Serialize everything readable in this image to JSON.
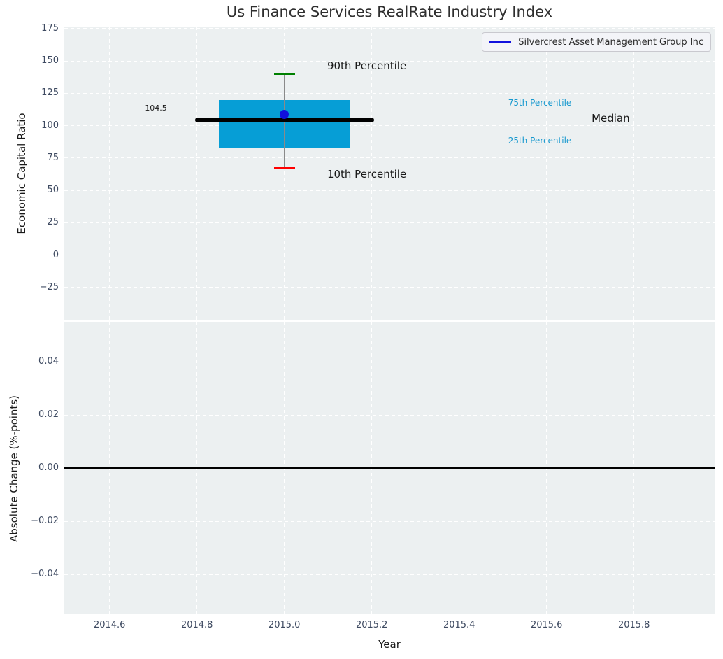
{
  "figure": {
    "title": "Us Finance Services RealRate Industry Index",
    "legend": {
      "label": "Silvercrest Asset Management Group Inc",
      "line_color": "#1111dd"
    }
  },
  "chart_data": {
    "type": "boxplot",
    "title": "Us Finance Services RealRate Industry Index",
    "xlabel": "Year",
    "xlim": [
      2014.4965,
      2015.9845
    ],
    "x_ticks": [
      2014.6,
      2014.8,
      2015.0,
      2015.2,
      2015.4,
      2015.6,
      2015.8
    ],
    "x_tick_labels": [
      "2014.6",
      "2014.8",
      "2015.0",
      "2015.2",
      "2015.4",
      "2015.6",
      "2015.8"
    ],
    "grid": true,
    "legend_position": "upper right",
    "subplots": [
      {
        "ylabel": "Economic Capital Ratio",
        "ylim": [
          -50,
          176.6
        ],
        "y_ticks": [
          175,
          150,
          125,
          100,
          75,
          50,
          25,
          0,
          -25
        ],
        "y_tick_labels": [
          "175",
          "150",
          "125",
          "100",
          "75",
          "50",
          "25",
          "0",
          "−25"
        ],
        "box": {
          "x_center": 2015.0,
          "box_x_range": [
            2014.85,
            2015.15
          ],
          "median_x_range": [
            2014.8,
            2015.2
          ],
          "cap_halfwidth_x": 0.024,
          "p90": 140,
          "p75": 120,
          "median": 104.5,
          "p25": 83,
          "p10": 67,
          "box_color": "#069ed6",
          "median_color": "#000000",
          "whisker_color": "#8a8a8a",
          "cap90_color": "#008000",
          "cap10_color": "#ff0000"
        },
        "company_point": {
          "name": "Silvercrest Asset Management Group Inc",
          "x": 2015.0,
          "y": 108.8,
          "color": "#1111dd"
        },
        "annotations": [
          {
            "id": "90th-percentile",
            "text": "90th Percentile",
            "x": 2015.098,
            "y": 145.5,
            "color": "#1a1a1a",
            "size": 15
          },
          {
            "id": "10th-percentile",
            "text": "10th Percentile",
            "x": 2015.098,
            "y": 61.5,
            "color": "#1a1a1a",
            "size": 15
          },
          {
            "id": "median-value",
            "text": "104.5",
            "x": 2014.681,
            "y": 112.9,
            "color": "#1a1a1a",
            "size": 11
          },
          {
            "id": "75th-percentile",
            "text": "75th Percentile",
            "x": 2015.512,
            "y": 117.0,
            "color": "#1899cf",
            "size": 12
          },
          {
            "id": "25th-percentile",
            "text": "25th Percentile",
            "x": 2015.512,
            "y": 87.3,
            "color": "#1899cf",
            "size": 12
          },
          {
            "id": "median-label",
            "text": "Median",
            "x": 2015.703,
            "y": 104.8,
            "color": "#1a1a1a",
            "size": 15
          }
        ]
      },
      {
        "ylabel": "Absolute Change (%-points)",
        "ylim": [
          -0.055,
          0.055
        ],
        "y_ticks": [
          0.04,
          0.02,
          0.0,
          -0.02,
          -0.04
        ],
        "y_tick_labels": [
          "0.04",
          "0.02",
          "0.00",
          "−0.02",
          "−0.04"
        ],
        "zero_line": {
          "y": 0.0,
          "color": "#000000"
        }
      }
    ]
  }
}
